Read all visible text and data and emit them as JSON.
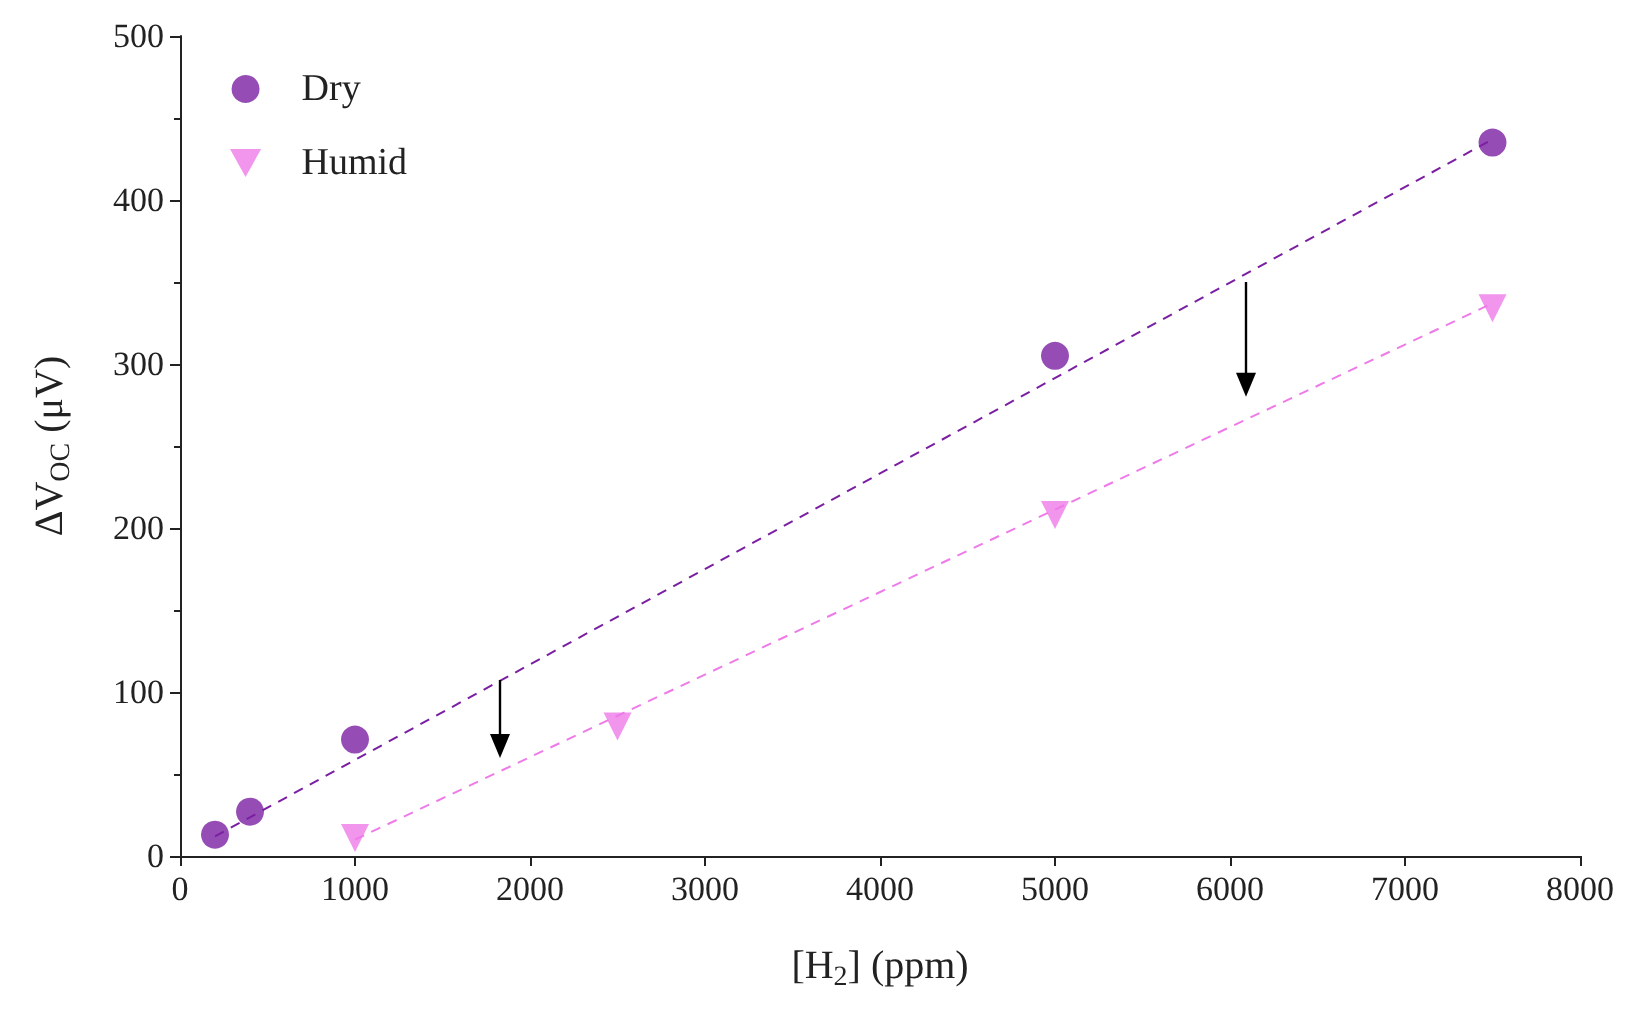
{
  "chart_data": {
    "type": "scatter",
    "xlabel": "[H$_{2}$] (ppm)",
    "ylabel": "ΔV$_{OC}$ (μV)",
    "xlim": [
      0,
      8000
    ],
    "xticks": [
      0,
      1000,
      2000,
      3000,
      4000,
      5000,
      6000,
      7000,
      8000
    ],
    "ylim": [
      0,
      500
    ],
    "yticks": [
      0,
      100,
      200,
      300,
      400,
      500
    ],
    "grid": false,
    "legend": "top left",
    "series": [
      {
        "name": "Dry",
        "color": "#7b1fa2",
        "marker": "circle",
        "x": [
          200,
          400,
          1000,
          5000,
          7500
        ],
        "values": [
          13,
          27,
          71,
          305,
          435
        ]
      },
      {
        "name": "Humid",
        "color": "#ee7be8",
        "marker": "triangle",
        "x": [
          1000,
          2500,
          5000,
          7500
        ],
        "values": [
          11,
          79,
          208,
          334
        ]
      },
      {
        "type": "line",
        "color": "#7b1fa2",
        "line_style": "dashed",
        "x": [
          200,
          7500
        ],
        "values": [
          12,
          437
        ]
      },
      {
        "type": "line",
        "color": "#ee7be8",
        "line_style": "dashed",
        "x": [
          1000,
          7500
        ],
        "values": [
          10,
          337
        ]
      }
    ]
  }
}
